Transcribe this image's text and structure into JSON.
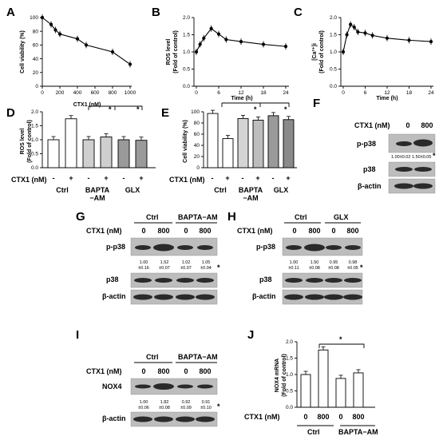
{
  "panels": {
    "A": {
      "label": "A",
      "ylabel": "Cell viability (%)",
      "xlabel": "CTX1 (nM)",
      "yticks": [
        "0",
        "20",
        "40",
        "60",
        "80",
        "100"
      ],
      "xticks": [
        "0",
        "200",
        "400",
        "600",
        "800",
        "1000"
      ]
    },
    "B": {
      "label": "B",
      "ylabel": "ROS level",
      "ylabel2": "(Fold of control)",
      "xlabel": "Time (h)",
      "yticks": [
        "0.0",
        "0.5",
        "1.0",
        "1.5",
        "2.0"
      ],
      "xticks": [
        "0",
        "6",
        "12",
        "18",
        "24"
      ]
    },
    "C": {
      "label": "C",
      "ylabel": "[Ca²⁺]i",
      "ylabel2": "(Fold of control)",
      "xlabel": "Time (h)",
      "yticks": [
        "0.0",
        "0.5",
        "1.0",
        "1.5",
        "2.0"
      ],
      "xticks": [
        "0",
        "6",
        "12",
        "18",
        "24"
      ]
    },
    "D": {
      "label": "D",
      "ylabel": "ROS level",
      "ylabel2": "(Fold of control)",
      "yticks": [
        "0.0",
        "0.5",
        "1.0",
        "1.5",
        "2.0"
      ],
      "treat": "CTX1 (nM)",
      "signs": [
        "-",
        "+",
        "-",
        "+",
        "-",
        "+"
      ],
      "groups": [
        "Ctrl",
        "BAPTA−AM",
        "GLX"
      ],
      "star": "*"
    },
    "E": {
      "label": "E",
      "ylabel": "Cell viability (%)",
      "yticks": [
        "0",
        "20",
        "40",
        "60",
        "80",
        "100"
      ],
      "treat": "CTX1 (nM)",
      "signs": [
        "-",
        "+",
        "-",
        "+",
        "-",
        "+"
      ],
      "groups": [
        "Ctrl",
        "BAPTA−AM",
        "GLX"
      ],
      "star": "*"
    },
    "F": {
      "label": "F",
      "treat": "CTX1 (nM)",
      "doses": [
        "0",
        "800"
      ],
      "rows": [
        "p-p38",
        "p38",
        "β-actin"
      ],
      "quant": [
        "1.00±0.02",
        "1.50±0.05"
      ],
      "star": "*"
    },
    "G": {
      "label": "G",
      "treat": "CTX1 (nM)",
      "groups": [
        "Ctrl",
        "BAPTA−AM"
      ],
      "doses": [
        "0",
        "800",
        "0",
        "800"
      ],
      "rows": [
        "p-p38",
        "p38",
        "β-actin"
      ],
      "quant_top": [
        "1.00",
        "1.52",
        "1.02",
        "1.05"
      ],
      "quant_bot": [
        "±0.16",
        "±0.07",
        "±0.07",
        "±0.04"
      ],
      "star": "*"
    },
    "H": {
      "label": "H",
      "treat": "CTX1 (nM)",
      "groups": [
        "Ctrl",
        "GLX"
      ],
      "doses": [
        "0",
        "800",
        "0",
        "800"
      ],
      "rows": [
        "p-p38",
        "p38",
        "β-actin"
      ],
      "quant_top": [
        "1.00",
        "1.50",
        "0.95",
        "0.98"
      ],
      "quant_bot": [
        "±0.11",
        "±0.08",
        "±0.08",
        "±0.05"
      ],
      "star": "*"
    },
    "I": {
      "label": "I",
      "treat": "CTX1 (nM)",
      "groups": [
        "Ctrl",
        "BAPTA−AM"
      ],
      "doses": [
        "0",
        "800",
        "0",
        "800"
      ],
      "rows": [
        "NOX4",
        "β-actin"
      ],
      "quant_top": [
        "1.00",
        "1.82",
        "0.92",
        "0.91"
      ],
      "quant_bot": [
        "±0.06",
        "±0.08",
        "±0.09",
        "±0.10"
      ],
      "star": "*"
    },
    "J": {
      "label": "J",
      "ylabel": "NOX4 mRNA",
      "ylabel2": "(Fold of control)",
      "yticks": [
        "0.0",
        "0.5",
        "1.0",
        "1.5",
        "2.0"
      ],
      "treat": "CTX1 (nM)",
      "doses": [
        "0",
        "800",
        "0",
        "800"
      ],
      "groups": [
        "Ctrl",
        "BAPTA−AM"
      ],
      "star": "*"
    }
  },
  "chart_data": [
    {
      "panel": "A",
      "type": "line",
      "x": [
        0,
        100,
        150,
        200,
        400,
        500,
        800,
        1000
      ],
      "y": [
        100,
        90,
        82,
        76,
        69,
        60,
        50,
        32
      ],
      "ylim": [
        0,
        100
      ],
      "xlim": [
        0,
        1000
      ]
    },
    {
      "panel": "B",
      "type": "line",
      "x": [
        0,
        1,
        2,
        4,
        6,
        8,
        12,
        18,
        24
      ],
      "y": [
        1.0,
        1.22,
        1.4,
        1.68,
        1.52,
        1.36,
        1.3,
        1.22,
        1.16
      ],
      "ylim": [
        0,
        2
      ],
      "xlim": [
        0,
        24
      ]
    },
    {
      "panel": "C",
      "type": "line",
      "x": [
        0,
        1,
        2,
        3,
        4,
        6,
        8,
        12,
        18,
        24
      ],
      "y": [
        1.0,
        1.5,
        1.8,
        1.72,
        1.58,
        1.55,
        1.48,
        1.4,
        1.34,
        1.3
      ],
      "ylim": [
        0,
        2
      ],
      "xlim": [
        0,
        24
      ]
    },
    {
      "panel": "D",
      "type": "bar",
      "categories": [
        "Ctrl -",
        "Ctrl +",
        "BAPTA-AM -",
        "BAPTA-AM +",
        "GLX -",
        "GLX +"
      ],
      "values": [
        1.0,
        1.75,
        1.0,
        1.1,
        1.0,
        0.98
      ],
      "ylim": [
        0,
        2
      ]
    },
    {
      "panel": "E",
      "type": "bar",
      "categories": [
        "Ctrl -",
        "Ctrl +",
        "BAPTA-AM -",
        "BAPTA-AM +",
        "GLX -",
        "GLX +"
      ],
      "values": [
        97,
        52,
        88,
        85,
        93,
        86
      ],
      "ylim": [
        0,
        100
      ]
    },
    {
      "panel": "J",
      "type": "bar",
      "categories": [
        "Ctrl 0",
        "Ctrl 800",
        "BAPTA-AM 0",
        "BAPTA-AM 800"
      ],
      "values": [
        1.0,
        1.75,
        0.88,
        1.05
      ],
      "ylim": [
        0,
        2
      ]
    }
  ]
}
